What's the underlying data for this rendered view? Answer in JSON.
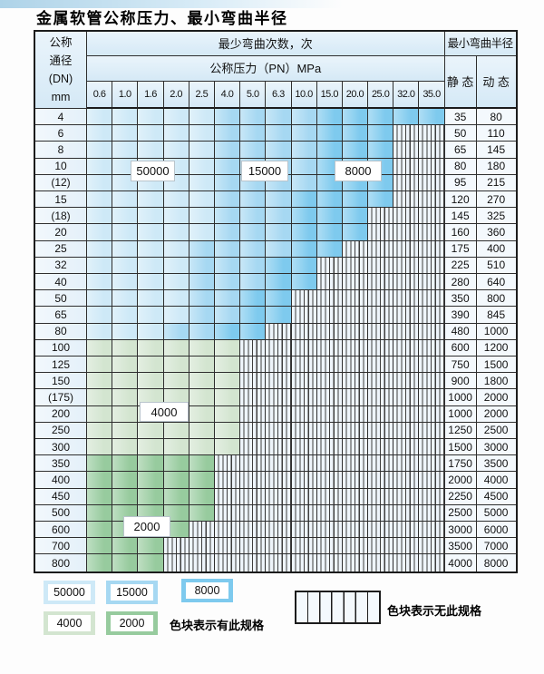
{
  "title": "金属软管公称压力、最小弯曲半径",
  "colors": {
    "light_blue": "#cee9f7",
    "medium_blue": "#a6d8f2",
    "dark_blue": "#7ecaee",
    "light_green": "#d3e5d0",
    "medium_green": "#97cb9e",
    "hatch_bg": "#eef5fb",
    "header_bg": "#ddeef9",
    "border": "#2e2e2e"
  },
  "table": {
    "header": {
      "dn_lines": [
        "公称",
        "通径",
        "(DN)",
        "mm"
      ],
      "bend_cycles": "最少弯曲次数，次",
      "pressure": "公称压力（PN）MPa",
      "radius": "最小弯曲半径",
      "static_label": "静 态",
      "dynamic_label": "动 态",
      "pressure_ticks": [
        "0.6",
        "1.0",
        "1.6",
        "2.0",
        "2.5",
        "4.0",
        "5.0",
        "6.3",
        "10.0",
        "15.0",
        "20.0",
        "25.0",
        "32.0",
        "35.0"
      ]
    },
    "cell_code_legend": {
      "a": "50000次 (浅蓝)",
      "b": "15000次 (中蓝)",
      "c": "8000次 (深蓝)",
      "d": "4000次 (浅绿)",
      "e": "2000次 (中绿)",
      "x": "无此规格 (竖线阴影)"
    },
    "rows": [
      {
        "dn": "4",
        "cells": "aaaaabbbbccccc",
        "static": "35",
        "dynamic": "80"
      },
      {
        "dn": "6",
        "cells": "aaaaabbbbcccxx",
        "static": "50",
        "dynamic": "110"
      },
      {
        "dn": "8",
        "cells": "aaaaabbbbcccxx",
        "static": "65",
        "dynamic": "145"
      },
      {
        "dn": "10",
        "cells": "aaaaabbbbcccxx",
        "static": "80",
        "dynamic": "180"
      },
      {
        "dn": "(12)",
        "cells": "aaaaabbbbcccxx",
        "static": "95",
        "dynamic": "215"
      },
      {
        "dn": "15",
        "cells": "aaaaabbbccccxx",
        "static": "120",
        "dynamic": "270"
      },
      {
        "dn": "(18)",
        "cells": "aaaaabbbcccxxx",
        "static": "145",
        "dynamic": "325"
      },
      {
        "dn": "20",
        "cells": "aaaaabbbcccxxx",
        "static": "160",
        "dynamic": "360"
      },
      {
        "dn": "25",
        "cells": "aaaabbbbccxxxx",
        "static": "175",
        "dynamic": "400"
      },
      {
        "dn": "32",
        "cells": "aaaabbbccxxxxx",
        "static": "225",
        "dynamic": "510"
      },
      {
        "dn": "40",
        "cells": "aaaabbbccxxxxx",
        "static": "280",
        "dynamic": "640"
      },
      {
        "dn": "50",
        "cells": "aaaabbccxxxxxx",
        "static": "350",
        "dynamic": "800"
      },
      {
        "dn": "65",
        "cells": "aaaabbccxxxxxx",
        "static": "390",
        "dynamic": "845"
      },
      {
        "dn": "80",
        "cells": "aaabbccxxxxxxx",
        "static": "480",
        "dynamic": "1000"
      },
      {
        "dn": "100",
        "cells": "ddddddxxxxxxxx",
        "static": "600",
        "dynamic": "1200"
      },
      {
        "dn": "125",
        "cells": "ddddddxxxxxxxx",
        "static": "750",
        "dynamic": "1500"
      },
      {
        "dn": "150",
        "cells": "ddddddxxxxxxxx",
        "static": "900",
        "dynamic": "1800"
      },
      {
        "dn": "(175)",
        "cells": "ddddddxxxxxxxx",
        "static": "1000",
        "dynamic": "2000"
      },
      {
        "dn": "200",
        "cells": "ddddddxxxxxxxx",
        "static": "1000",
        "dynamic": "2000"
      },
      {
        "dn": "250",
        "cells": "ddddddxxxxxxxx",
        "static": "1250",
        "dynamic": "2500"
      },
      {
        "dn": "300",
        "cells": "ddddddxxxxxxxx",
        "static": "1500",
        "dynamic": "3000"
      },
      {
        "dn": "350",
        "cells": "eeeeexxxxxxxxx",
        "static": "1750",
        "dynamic": "3500"
      },
      {
        "dn": "400",
        "cells": "eeeeexxxxxxxxx",
        "static": "2000",
        "dynamic": "4000"
      },
      {
        "dn": "450",
        "cells": "eeeeexxxxxxxxx",
        "static": "2250",
        "dynamic": "4500"
      },
      {
        "dn": "500",
        "cells": "eeeeexxxxxxxxx",
        "static": "2500",
        "dynamic": "5000"
      },
      {
        "dn": "600",
        "cells": "eeeexxxxxxxxxx",
        "static": "3000",
        "dynamic": "6000"
      },
      {
        "dn": "700",
        "cells": "eeexxxxxxxxxxx",
        "static": "3500",
        "dynamic": "7000"
      },
      {
        "dn": "800",
        "cells": "eeexxxxxxxxxxx",
        "static": "4000",
        "dynamic": "8000"
      }
    ],
    "zone_labels": [
      {
        "id": "b50000",
        "text": "50000"
      },
      {
        "id": "b15000",
        "text": "15000"
      },
      {
        "id": "b8000",
        "text": "8000"
      },
      {
        "id": "g4000",
        "text": "4000"
      },
      {
        "id": "g2000",
        "text": "2000"
      }
    ]
  },
  "legend": {
    "swatches": [
      {
        "id": "s50000",
        "label": "50000"
      },
      {
        "id": "s15000",
        "label": "15000"
      },
      {
        "id": "s8000",
        "label": "8000"
      },
      {
        "id": "s4000",
        "label": "4000"
      },
      {
        "id": "s2000",
        "label": "2000"
      }
    ],
    "has_spec_text": "色块表示有此规格",
    "no_spec_text": "色块表示无此规格"
  }
}
